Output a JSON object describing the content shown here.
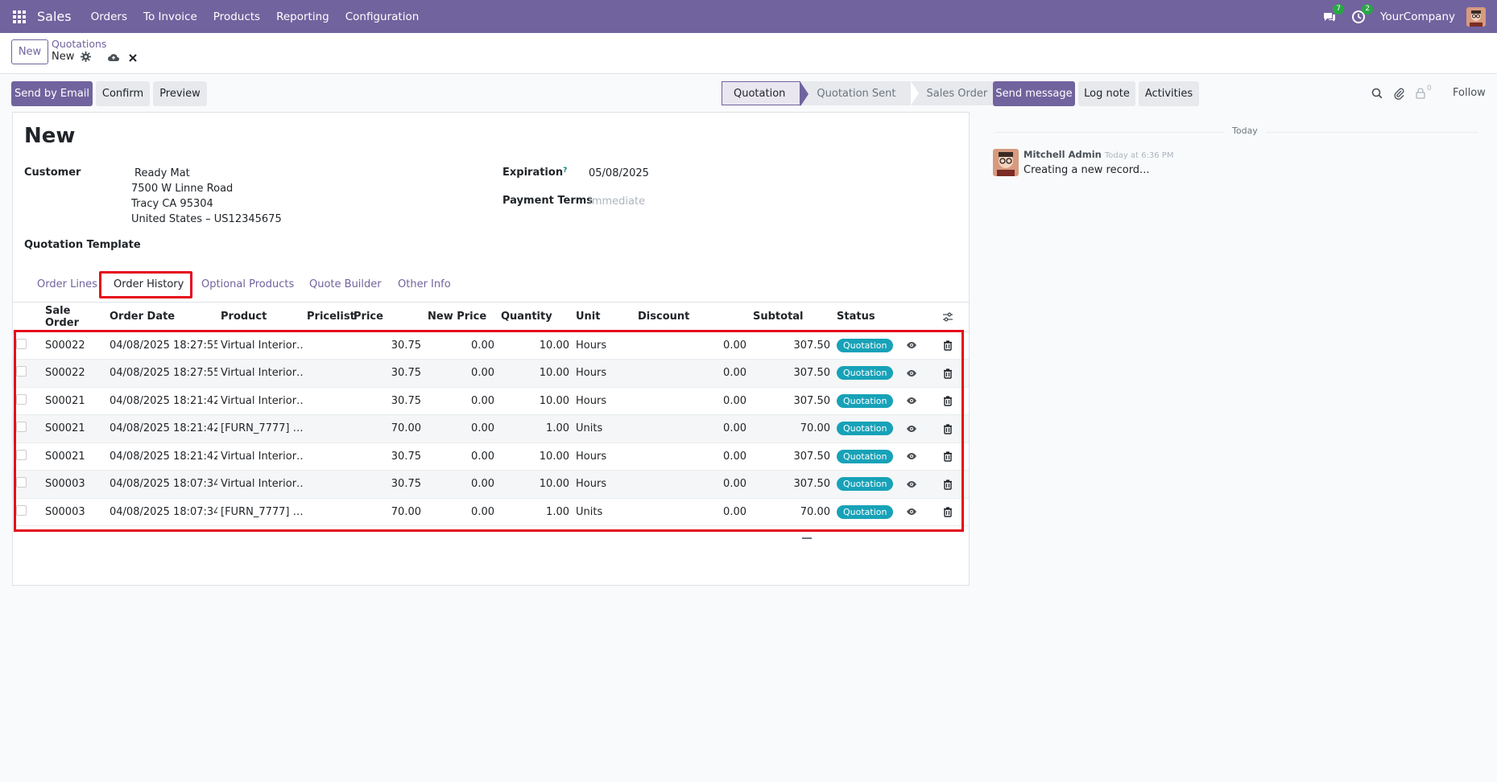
{
  "navbar": {
    "app_name": "Sales",
    "menus": [
      "Orders",
      "To Invoice",
      "Products",
      "Reporting",
      "Configuration"
    ],
    "messages_count": "7",
    "activities_count": "2",
    "company": "YourCompany"
  },
  "breadcrumb": {
    "new_button": "New",
    "parent": "Quotations",
    "current": "New"
  },
  "actions": {
    "send_email": "Send by Email",
    "confirm": "Confirm",
    "preview": "Preview"
  },
  "statusbar": [
    "Quotation",
    "Quotation Sent",
    "Sales Order"
  ],
  "form": {
    "title": "New",
    "customer_label": "Customer",
    "customer_name": "Ready Mat",
    "customer_addr1": "7500 W Linne Road",
    "customer_addr2": "Tracy CA 95304",
    "customer_addr3": "United States – US12345675",
    "expiration_label": "Expiration",
    "expiration_help": "?",
    "expiration_value": "05/08/2025",
    "payment_terms_label": "Payment Terms",
    "payment_terms_placeholder": "Immediate",
    "template_label": "Quotation Template"
  },
  "tabs": [
    "Order Lines",
    "Order History",
    "Optional Products",
    "Quote Builder",
    "Other Info"
  ],
  "table": {
    "headers": {
      "sale_order": "Sale Order",
      "order_date": "Order Date",
      "product": "Product",
      "pricelist": "Pricelist",
      "price": "Price",
      "new_price": "New Price",
      "quantity": "Quantity",
      "unit": "Unit",
      "discount": "Discount",
      "subtotal": "Subtotal",
      "status": "Status"
    },
    "rows": [
      {
        "so": "S00022",
        "date": "04/08/2025 18:27:55",
        "product": "Virtual Interior…",
        "price": "30.75",
        "new_price": "0.00",
        "qty": "10.00",
        "unit": "Hours",
        "discount": "0.00",
        "subtotal": "307.50",
        "status": "Quotation"
      },
      {
        "so": "S00022",
        "date": "04/08/2025 18:27:55",
        "product": "Virtual Interior…",
        "price": "30.75",
        "new_price": "0.00",
        "qty": "10.00",
        "unit": "Hours",
        "discount": "0.00",
        "subtotal": "307.50",
        "status": "Quotation"
      },
      {
        "so": "S00021",
        "date": "04/08/2025 18:21:42",
        "product": "Virtual Interior…",
        "price": "30.75",
        "new_price": "0.00",
        "qty": "10.00",
        "unit": "Hours",
        "discount": "0.00",
        "subtotal": "307.50",
        "status": "Quotation"
      },
      {
        "so": "S00021",
        "date": "04/08/2025 18:21:42",
        "product": "[FURN_7777] …",
        "price": "70.00",
        "new_price": "0.00",
        "qty": "1.00",
        "unit": "Units",
        "discount": "0.00",
        "subtotal": "70.00",
        "status": "Quotation"
      },
      {
        "so": "S00021",
        "date": "04/08/2025 18:21:42",
        "product": "Virtual Interior…",
        "price": "30.75",
        "new_price": "0.00",
        "qty": "10.00",
        "unit": "Hours",
        "discount": "0.00",
        "subtotal": "307.50",
        "status": "Quotation"
      },
      {
        "so": "S00003",
        "date": "04/08/2025 18:07:34",
        "product": "Virtual Interior…",
        "price": "30.75",
        "new_price": "0.00",
        "qty": "10.00",
        "unit": "Hours",
        "discount": "0.00",
        "subtotal": "307.50",
        "status": "Quotation"
      },
      {
        "so": "S00003",
        "date": "04/08/2025 18:07:34",
        "product": "[FURN_7777] …",
        "price": "70.00",
        "new_price": "0.00",
        "qty": "1.00",
        "unit": "Units",
        "discount": "0.00",
        "subtotal": "70.00",
        "status": "Quotation"
      }
    ]
  },
  "chatter": {
    "send_message": "Send message",
    "log_note": "Log note",
    "activities": "Activities",
    "followers_count": "0",
    "follow": "Follow",
    "date_separator": "Today",
    "author": "Mitchell Admin",
    "time": "Today at 6:36 PM",
    "body": "Creating a new record..."
  },
  "colors": {
    "brand": "#71639e",
    "highlight": "#e5091c",
    "status_pill": "#17a2b8"
  }
}
